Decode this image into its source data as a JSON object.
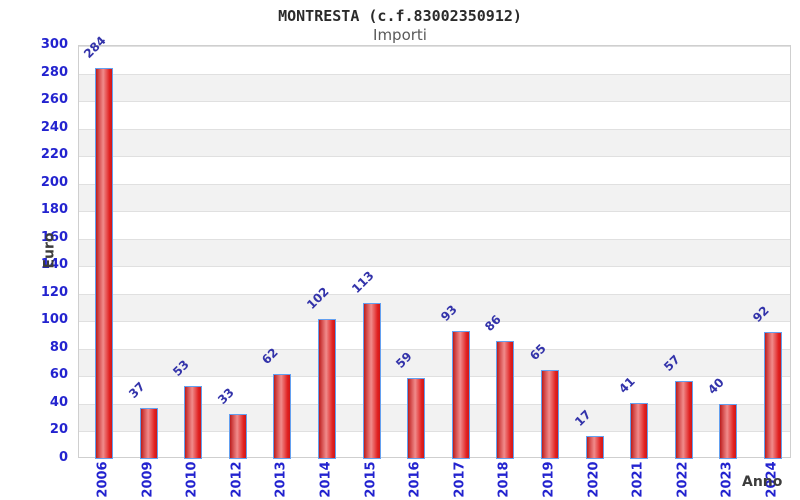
{
  "header": {
    "title": "MONTRESTA (c.f.83002350912)",
    "subtitle": "Importi"
  },
  "chart_data": {
    "type": "bar",
    "title": "MONTRESTA (c.f.83002350912)",
    "subtitle": "Importi",
    "xlabel": "Anno",
    "ylabel": "Euro",
    "categories": [
      "2006",
      "2009",
      "2010",
      "2012",
      "2013",
      "2014",
      "2015",
      "2016",
      "2017",
      "2018",
      "2019",
      "2020",
      "2021",
      "2022",
      "2023",
      "2024"
    ],
    "values": [
      284,
      37,
      53,
      33,
      62,
      102,
      113,
      59,
      93,
      86,
      65,
      17,
      41,
      57,
      40,
      92
    ],
    "ylim": [
      0,
      300
    ],
    "ytick_step": 20,
    "grid": true,
    "legend_position": "none",
    "colors": {
      "bar_fill_dark": "#bb1d1d",
      "bar_fill_light": "#f08b8b",
      "bar_fill_right": "#e02020",
      "bar_border": "#63a0f0",
      "axis_label_blue": "#2323cf",
      "value_label_blue": "#3333aa",
      "band_gray": "#f2f2f2",
      "gridline": "#e0e0e0",
      "plot_border": "#cfcfcf",
      "title_color": "#2b2b2b",
      "subtitle_color": "#5a5a5a"
    }
  }
}
